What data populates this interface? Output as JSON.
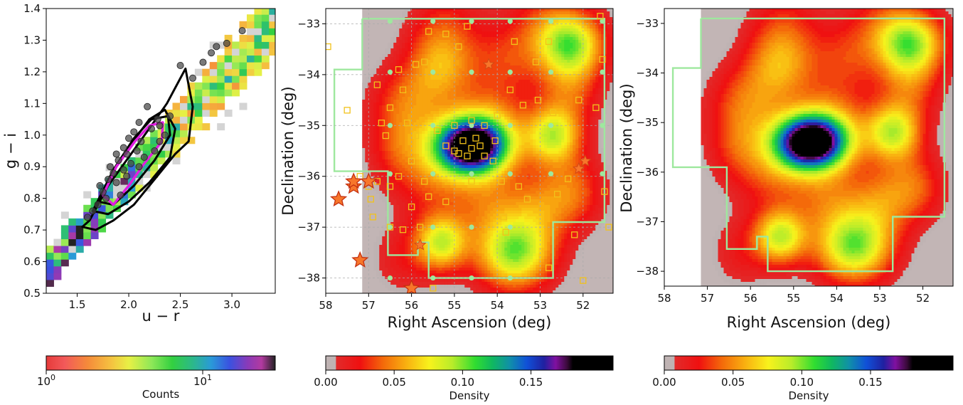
{
  "chart_data": [
    {
      "type": "heatmap",
      "panel": "color-color",
      "xlabel": "u − r",
      "ylabel": "g − i",
      "xlim": [
        1.2,
        3.42
      ],
      "ylim": [
        0.5,
        1.4
      ],
      "xticks": [
        "1.5",
        "2.0",
        "2.5",
        "3.0"
      ],
      "yticks": [
        "0.5",
        "0.6",
        "0.7",
        "0.8",
        "0.9",
        "1.0",
        "1.1",
        "1.2",
        "1.3",
        "1.4"
      ],
      "colorbar": {
        "label": "Counts",
        "scale": "log",
        "range": [
          1,
          30
        ],
        "tick_labels": [
          {
            "base": "10",
            "exp": "0"
          },
          {
            "base": "10",
            "exp": "1"
          }
        ]
      },
      "contours": {
        "black": [
          [
            [
              1.55,
              0.71
            ],
            [
              1.62,
              0.73
            ],
            [
              1.8,
              0.84
            ],
            [
              2.0,
              0.93
            ],
            [
              2.22,
              1.03
            ],
            [
              2.37,
              1.1
            ],
            [
              2.55,
              1.21
            ],
            [
              2.62,
              1.09
            ],
            [
              2.58,
              0.98
            ],
            [
              2.45,
              0.94
            ],
            [
              2.25,
              0.86
            ],
            [
              2.05,
              0.78
            ],
            [
              1.85,
              0.73
            ],
            [
              1.68,
              0.7
            ],
            [
              1.55,
              0.71
            ]
          ],
          [
            [
              1.65,
              0.76
            ],
            [
              1.82,
              0.87
            ],
            [
              2.02,
              0.97
            ],
            [
              2.2,
              1.05
            ],
            [
              2.35,
              1.08
            ],
            [
              2.45,
              1.02
            ],
            [
              2.4,
              0.93
            ],
            [
              2.2,
              0.85
            ],
            [
              2.0,
              0.79
            ],
            [
              1.8,
              0.75
            ],
            [
              1.65,
              0.76
            ]
          ],
          [
            [
              1.7,
              0.79
            ],
            [
              1.85,
              0.89
            ],
            [
              2.05,
              0.99
            ],
            [
              2.22,
              1.05
            ],
            [
              2.38,
              1.06
            ],
            [
              2.4,
              1.0
            ],
            [
              2.25,
              0.92
            ],
            [
              2.05,
              0.84
            ],
            [
              1.85,
              0.78
            ],
            [
              1.7,
              0.79
            ]
          ]
        ],
        "magenta": [
          [
            1.75,
            0.81
          ],
          [
            1.88,
            0.9
          ],
          [
            2.06,
            0.98
          ],
          [
            2.2,
            1.03
          ],
          [
            2.33,
            1.04
          ],
          [
            2.32,
            0.98
          ],
          [
            2.15,
            0.91
          ],
          [
            2.0,
            0.84
          ],
          [
            1.85,
            0.78
          ],
          [
            1.75,
            0.81
          ]
        ]
      },
      "points": [
        [
          2.5,
          1.22
        ],
        [
          2.72,
          1.23
        ],
        [
          2.85,
          1.28
        ],
        [
          2.95,
          1.29
        ],
        [
          3.1,
          1.33
        ],
        [
          2.62,
          1.18
        ],
        [
          2.8,
          1.26
        ],
        [
          2.18,
          1.09
        ],
        [
          2.1,
          1.04
        ],
        [
          2.28,
          1.05
        ],
        [
          2.0,
          0.99
        ],
        [
          2.05,
          1.01
        ],
        [
          1.95,
          0.96
        ],
        [
          2.12,
          0.98
        ],
        [
          1.9,
          0.92
        ],
        [
          1.98,
          0.94
        ],
        [
          2.22,
          1.02
        ],
        [
          2.3,
          1.03
        ],
        [
          1.85,
          0.88
        ],
        [
          1.8,
          0.86
        ],
        [
          1.75,
          0.82
        ],
        [
          1.88,
          0.85
        ],
        [
          1.95,
          0.89
        ],
        [
          2.02,
          0.91
        ],
        [
          2.08,
          0.95
        ],
        [
          1.7,
          0.78
        ],
        [
          1.78,
          0.8
        ],
        [
          1.92,
          0.81
        ],
        [
          2.15,
          0.93
        ],
        [
          2.25,
          0.95
        ],
        [
          2.35,
          1.0
        ],
        [
          1.82,
          0.9
        ],
        [
          2.4,
          1.06
        ],
        [
          1.72,
          0.84
        ],
        [
          1.65,
          0.76
        ],
        [
          1.98,
          0.87
        ],
        [
          2.1,
          0.9
        ],
        [
          1.6,
          0.74
        ],
        [
          2.3,
          0.98
        ],
        [
          1.88,
          0.94
        ]
      ]
    },
    {
      "type": "heatmap",
      "panel": "density-map-with-markers",
      "xlabel": "Right Ascension (deg)",
      "ylabel": "Declination (deg)",
      "xlim": [
        58,
        51.3
      ],
      "ylim": [
        -38.3,
        -32.7
      ],
      "xticks": [
        "58",
        "57",
        "56",
        "55",
        "54",
        "53",
        "52"
      ],
      "yticks": [
        "−33",
        "−34",
        "−35",
        "−36",
        "−37",
        "−38"
      ],
      "grid": true,
      "colorbar": {
        "label": "Density",
        "range": [
          0,
          0.21
        ],
        "tick_labels": [
          "0.00",
          "0.05",
          "0.10",
          "0.15"
        ]
      }
    },
    {
      "type": "heatmap",
      "panel": "density-map",
      "xlabel": "Right Ascension (deg)",
      "ylabel": "Declination (deg)",
      "xlim": [
        58,
        51.3
      ],
      "ylim": [
        -38.3,
        -32.7
      ],
      "xticks": [
        "58",
        "57",
        "56",
        "55",
        "54",
        "53",
        "52"
      ],
      "yticks": [
        "−33",
        "−34",
        "−35",
        "−36",
        "−37",
        "−38"
      ],
      "grid": false,
      "colorbar": {
        "label": "Density",
        "range": [
          0,
          0.21
        ],
        "tick_labels": [
          "0.00",
          "0.05",
          "0.10",
          "0.15"
        ]
      }
    }
  ],
  "shared": {
    "footprint": [
      [
        57.15,
        -32.9
      ],
      [
        51.5,
        -32.9
      ],
      [
        51.5,
        -36.9
      ],
      [
        52.7,
        -36.9
      ],
      [
        52.7,
        -38.0
      ],
      [
        55.6,
        -38.0
      ],
      [
        55.6,
        -37.3
      ],
      [
        55.85,
        -37.3
      ],
      [
        55.85,
        -37.55
      ],
      [
        56.55,
        -37.55
      ],
      [
        56.55,
        -35.9
      ],
      [
        57.8,
        -35.9
      ],
      [
        57.8,
        -33.9
      ],
      [
        57.15,
        -33.9
      ],
      [
        57.15,
        -32.9
      ]
    ],
    "shaded_ra_min": 57.15,
    "density_blobs": [
      {
        "ra": 54.6,
        "dec": -35.4,
        "amp": 0.215,
        "sra": 0.62,
        "sdec": 0.4
      },
      {
        "ra": 54.1,
        "dec": -34.8,
        "amp": 0.03,
        "sra": 0.6,
        "sdec": 0.5
      },
      {
        "ra": 55.5,
        "dec": -36.1,
        "amp": 0.03,
        "sra": 0.6,
        "sdec": 0.5
      },
      {
        "ra": 53.6,
        "dec": -37.5,
        "amp": 0.1,
        "sra": 0.62,
        "sdec": 0.5
      },
      {
        "ra": 55.3,
        "dec": -37.3,
        "amp": 0.085,
        "sra": 0.42,
        "sdec": 0.38
      },
      {
        "ra": 52.3,
        "dec": -33.4,
        "amp": 0.095,
        "sra": 0.55,
        "sdec": 0.45
      },
      {
        "ra": 52.7,
        "dec": -35.2,
        "amp": 0.085,
        "sra": 0.45,
        "sdec": 0.4
      },
      {
        "ra": 53.8,
        "dec": -33.7,
        "amp": 0.03,
        "sra": 0.6,
        "sdec": 0.5
      },
      {
        "ra": 55.3,
        "dec": -33.8,
        "amp": 0.055,
        "sra": 0.55,
        "sdec": 0.55
      },
      {
        "ra": 56.1,
        "dec": -34.6,
        "amp": 0.04,
        "sra": 0.6,
        "sdec": 0.55
      },
      {
        "ra": 56.3,
        "dec": -35.5,
        "amp": 0.028,
        "sra": 0.5,
        "sdec": 0.5
      },
      {
        "ra": 52.2,
        "dec": -36.3,
        "amp": 0.04,
        "sra": 0.5,
        "sdec": 0.5
      },
      {
        "ra": 53.0,
        "dec": -36.6,
        "amp": 0.035,
        "sra": 0.5,
        "sdec": 0.5
      },
      {
        "ra": 52.3,
        "dec": -34.3,
        "amp": 0.035,
        "sra": 0.5,
        "sdec": 0.5
      },
      {
        "ra": 54.2,
        "dec": -36.5,
        "amp": 0.035,
        "sra": 0.6,
        "sdec": 0.5
      },
      {
        "ra": 56.2,
        "dec": -37.6,
        "amp": 0.02,
        "sra": 0.5,
        "sdec": 0.5
      },
      {
        "ra": 55.2,
        "dec": -32.9,
        "amp": 0.02,
        "sra": 0.6,
        "sdec": 0.5
      },
      {
        "ra": 53.0,
        "dec": -32.9,
        "amp": 0.022,
        "sra": 0.6,
        "sdec": 0.5
      }
    ],
    "grid_nodes_ra": [
      56.5,
      55.5,
      54.6,
      53.7,
      52.75,
      51.55
    ],
    "grid_nodes_dec": [
      -32.95,
      -33.95,
      -35.0,
      -35.95,
      -37.0,
      -38.0
    ],
    "stars_big": [
      [
        57.7,
        -36.45
      ],
      [
        57.35,
        -36.2
      ],
      [
        57.35,
        -36.1
      ],
      [
        57.0,
        -36.1
      ],
      [
        57.2,
        -37.65
      ],
      [
        56.0,
        -38.2
      ]
    ],
    "stars_small": [
      [
        55.8,
        -37.35
      ],
      [
        54.2,
        -33.8
      ],
      [
        52.1,
        -35.85
      ],
      [
        51.95,
        -35.7
      ]
    ],
    "squares": [
      [
        57.95,
        -33.45
      ],
      [
        56.3,
        -33.9
      ],
      [
        55.9,
        -33.8
      ],
      [
        55.7,
        -33.75
      ],
      [
        55.2,
        -33.2
      ],
      [
        54.9,
        -33.45
      ],
      [
        54.7,
        -33.05
      ],
      [
        55.6,
        -33.15
      ],
      [
        53.6,
        -33.35
      ],
      [
        53.1,
        -33.75
      ],
      [
        52.8,
        -33.35
      ],
      [
        51.6,
        -32.85
      ],
      [
        51.55,
        -33.7
      ],
      [
        53.7,
        -34.3
      ],
      [
        54.0,
        -34.8
      ],
      [
        53.4,
        -34.6
      ],
      [
        53.05,
        -34.5
      ],
      [
        52.7,
        -34.75
      ],
      [
        52.1,
        -34.5
      ],
      [
        51.7,
        -34.65
      ],
      [
        56.2,
        -34.3
      ],
      [
        56.5,
        -34.65
      ],
      [
        56.7,
        -34.95
      ],
      [
        56.6,
        -35.2
      ],
      [
        56.1,
        -34.95
      ],
      [
        55.9,
        -35.2
      ],
      [
        55.4,
        -35.1
      ],
      [
        55.0,
        -35.0
      ],
      [
        54.6,
        -34.9
      ],
      [
        54.3,
        -35.0
      ],
      [
        54.05,
        -35.3
      ],
      [
        55.0,
        -35.5
      ],
      [
        54.8,
        -35.3
      ],
      [
        54.6,
        -35.45
      ],
      [
        54.4,
        -35.4
      ],
      [
        54.7,
        -35.6
      ],
      [
        54.9,
        -35.55
      ],
      [
        54.5,
        -35.25
      ],
      [
        54.3,
        -35.6
      ],
      [
        54.1,
        -35.7
      ],
      [
        55.2,
        -35.4
      ],
      [
        56.0,
        -35.7
      ],
      [
        56.3,
        -36.0
      ],
      [
        55.7,
        -36.1
      ],
      [
        55.6,
        -36.4
      ],
      [
        56.5,
        -36.2
      ],
      [
        57.2,
        -36.0
      ],
      [
        57.0,
        -36.2
      ],
      [
        56.8,
        -36.1
      ],
      [
        56.0,
        -36.6
      ],
      [
        55.2,
        -36.5
      ],
      [
        54.6,
        -36.1
      ],
      [
        53.9,
        -36.1
      ],
      [
        53.5,
        -36.2
      ],
      [
        53.3,
        -36.45
      ],
      [
        53.85,
        -36.8
      ],
      [
        52.6,
        -36.35
      ],
      [
        52.35,
        -36.05
      ],
      [
        51.5,
        -36.3
      ],
      [
        52.2,
        -37.15
      ],
      [
        51.4,
        -37.0
      ],
      [
        53.8,
        -37.1
      ],
      [
        52.8,
        -37.8
      ],
      [
        52.0,
        -38.05
      ],
      [
        56.9,
        -36.8
      ],
      [
        56.5,
        -37.0
      ],
      [
        56.2,
        -37.05
      ],
      [
        55.8,
        -37.0
      ],
      [
        55.5,
        -38.2
      ],
      [
        57.5,
        -34.7
      ],
      [
        56.8,
        -34.2
      ],
      [
        56.95,
        -36.45
      ]
    ]
  }
}
